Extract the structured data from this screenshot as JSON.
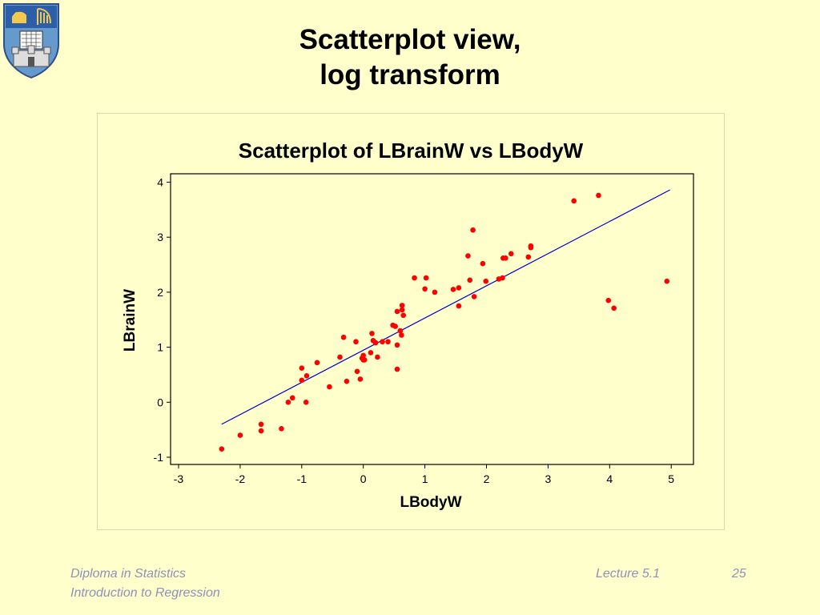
{
  "slide": {
    "title_line1": "Scatterplot view,",
    "title_line2": "log transform"
  },
  "logo": {
    "icon": "crest-icon"
  },
  "footer": {
    "course": "Diploma in Statistics",
    "module": "Introduction to Regression",
    "lecture": "Lecture 5.1",
    "page": "25"
  },
  "colors": {
    "background": "#ffffcc",
    "points": "#ff0000",
    "fit_line": "#0000cc",
    "footer_text": "#8d91bc"
  },
  "chart_data": {
    "type": "scatter",
    "title": "Scatterplot of LBrainW vs LBodyW",
    "xlabel": "LBodyW",
    "ylabel": "LBrainW",
    "xlim": [
      -3,
      5
    ],
    "ylim": [
      -1,
      4
    ],
    "xticks": [
      -3,
      -2,
      -1,
      0,
      1,
      2,
      3,
      4,
      5
    ],
    "yticks": [
      -1,
      0,
      1,
      2,
      3,
      4
    ],
    "grid": false,
    "fit_line": {
      "x": [
        -2.3,
        4.98
      ],
      "y": [
        -0.4,
        3.86
      ]
    },
    "points": [
      [
        -2.3,
        -0.85
      ],
      [
        -2.0,
        -0.6
      ],
      [
        -1.66,
        -0.4
      ],
      [
        -1.66,
        -0.52
      ],
      [
        -1.33,
        -0.48
      ],
      [
        -1.22,
        0.0
      ],
      [
        -1.15,
        0.08
      ],
      [
        -1.0,
        0.62
      ],
      [
        -1.0,
        0.4
      ],
      [
        -0.92,
        0.48
      ],
      [
        -0.93,
        0.0
      ],
      [
        -0.75,
        0.72
      ],
      [
        -0.55,
        0.28
      ],
      [
        -0.38,
        0.82
      ],
      [
        -0.32,
        1.18
      ],
      [
        -0.27,
        0.38
      ],
      [
        -0.12,
        1.1
      ],
      [
        -0.1,
        0.56
      ],
      [
        -0.05,
        0.42
      ],
      [
        -0.02,
        0.8
      ],
      [
        0.0,
        0.85
      ],
      [
        0.0,
        0.77
      ],
      [
        0.02,
        0.77
      ],
      [
        0.12,
        0.9
      ],
      [
        0.14,
        1.25
      ],
      [
        0.16,
        1.12
      ],
      [
        0.2,
        1.08
      ],
      [
        0.23,
        0.82
      ],
      [
        0.31,
        1.1
      ],
      [
        0.4,
        1.1
      ],
      [
        0.48,
        1.4
      ],
      [
        0.52,
        1.38
      ],
      [
        0.55,
        1.04
      ],
      [
        0.55,
        0.6
      ],
      [
        0.55,
        1.65
      ],
      [
        0.6,
        1.3
      ],
      [
        0.62,
        1.22
      ],
      [
        0.63,
        1.76
      ],
      [
        0.63,
        1.68
      ],
      [
        0.65,
        1.58
      ],
      [
        0.83,
        2.26
      ],
      [
        1.0,
        2.06
      ],
      [
        1.02,
        2.26
      ],
      [
        1.16,
        2.0
      ],
      [
        1.46,
        2.05
      ],
      [
        1.55,
        2.08
      ],
      [
        1.55,
        1.75
      ],
      [
        1.7,
        2.66
      ],
      [
        1.73,
        2.22
      ],
      [
        1.78,
        3.13
      ],
      [
        1.8,
        1.92
      ],
      [
        1.94,
        2.52
      ],
      [
        1.99,
        2.2
      ],
      [
        2.2,
        2.24
      ],
      [
        2.26,
        2.26
      ],
      [
        2.27,
        2.62
      ],
      [
        2.31,
        2.62
      ],
      [
        2.4,
        2.7
      ],
      [
        2.68,
        2.64
      ],
      [
        2.72,
        2.81
      ],
      [
        2.72,
        2.84
      ],
      [
        3.42,
        3.66
      ],
      [
        3.82,
        3.76
      ],
      [
        3.98,
        1.85
      ],
      [
        4.07,
        1.71
      ],
      [
        4.93,
        2.2
      ]
    ]
  }
}
